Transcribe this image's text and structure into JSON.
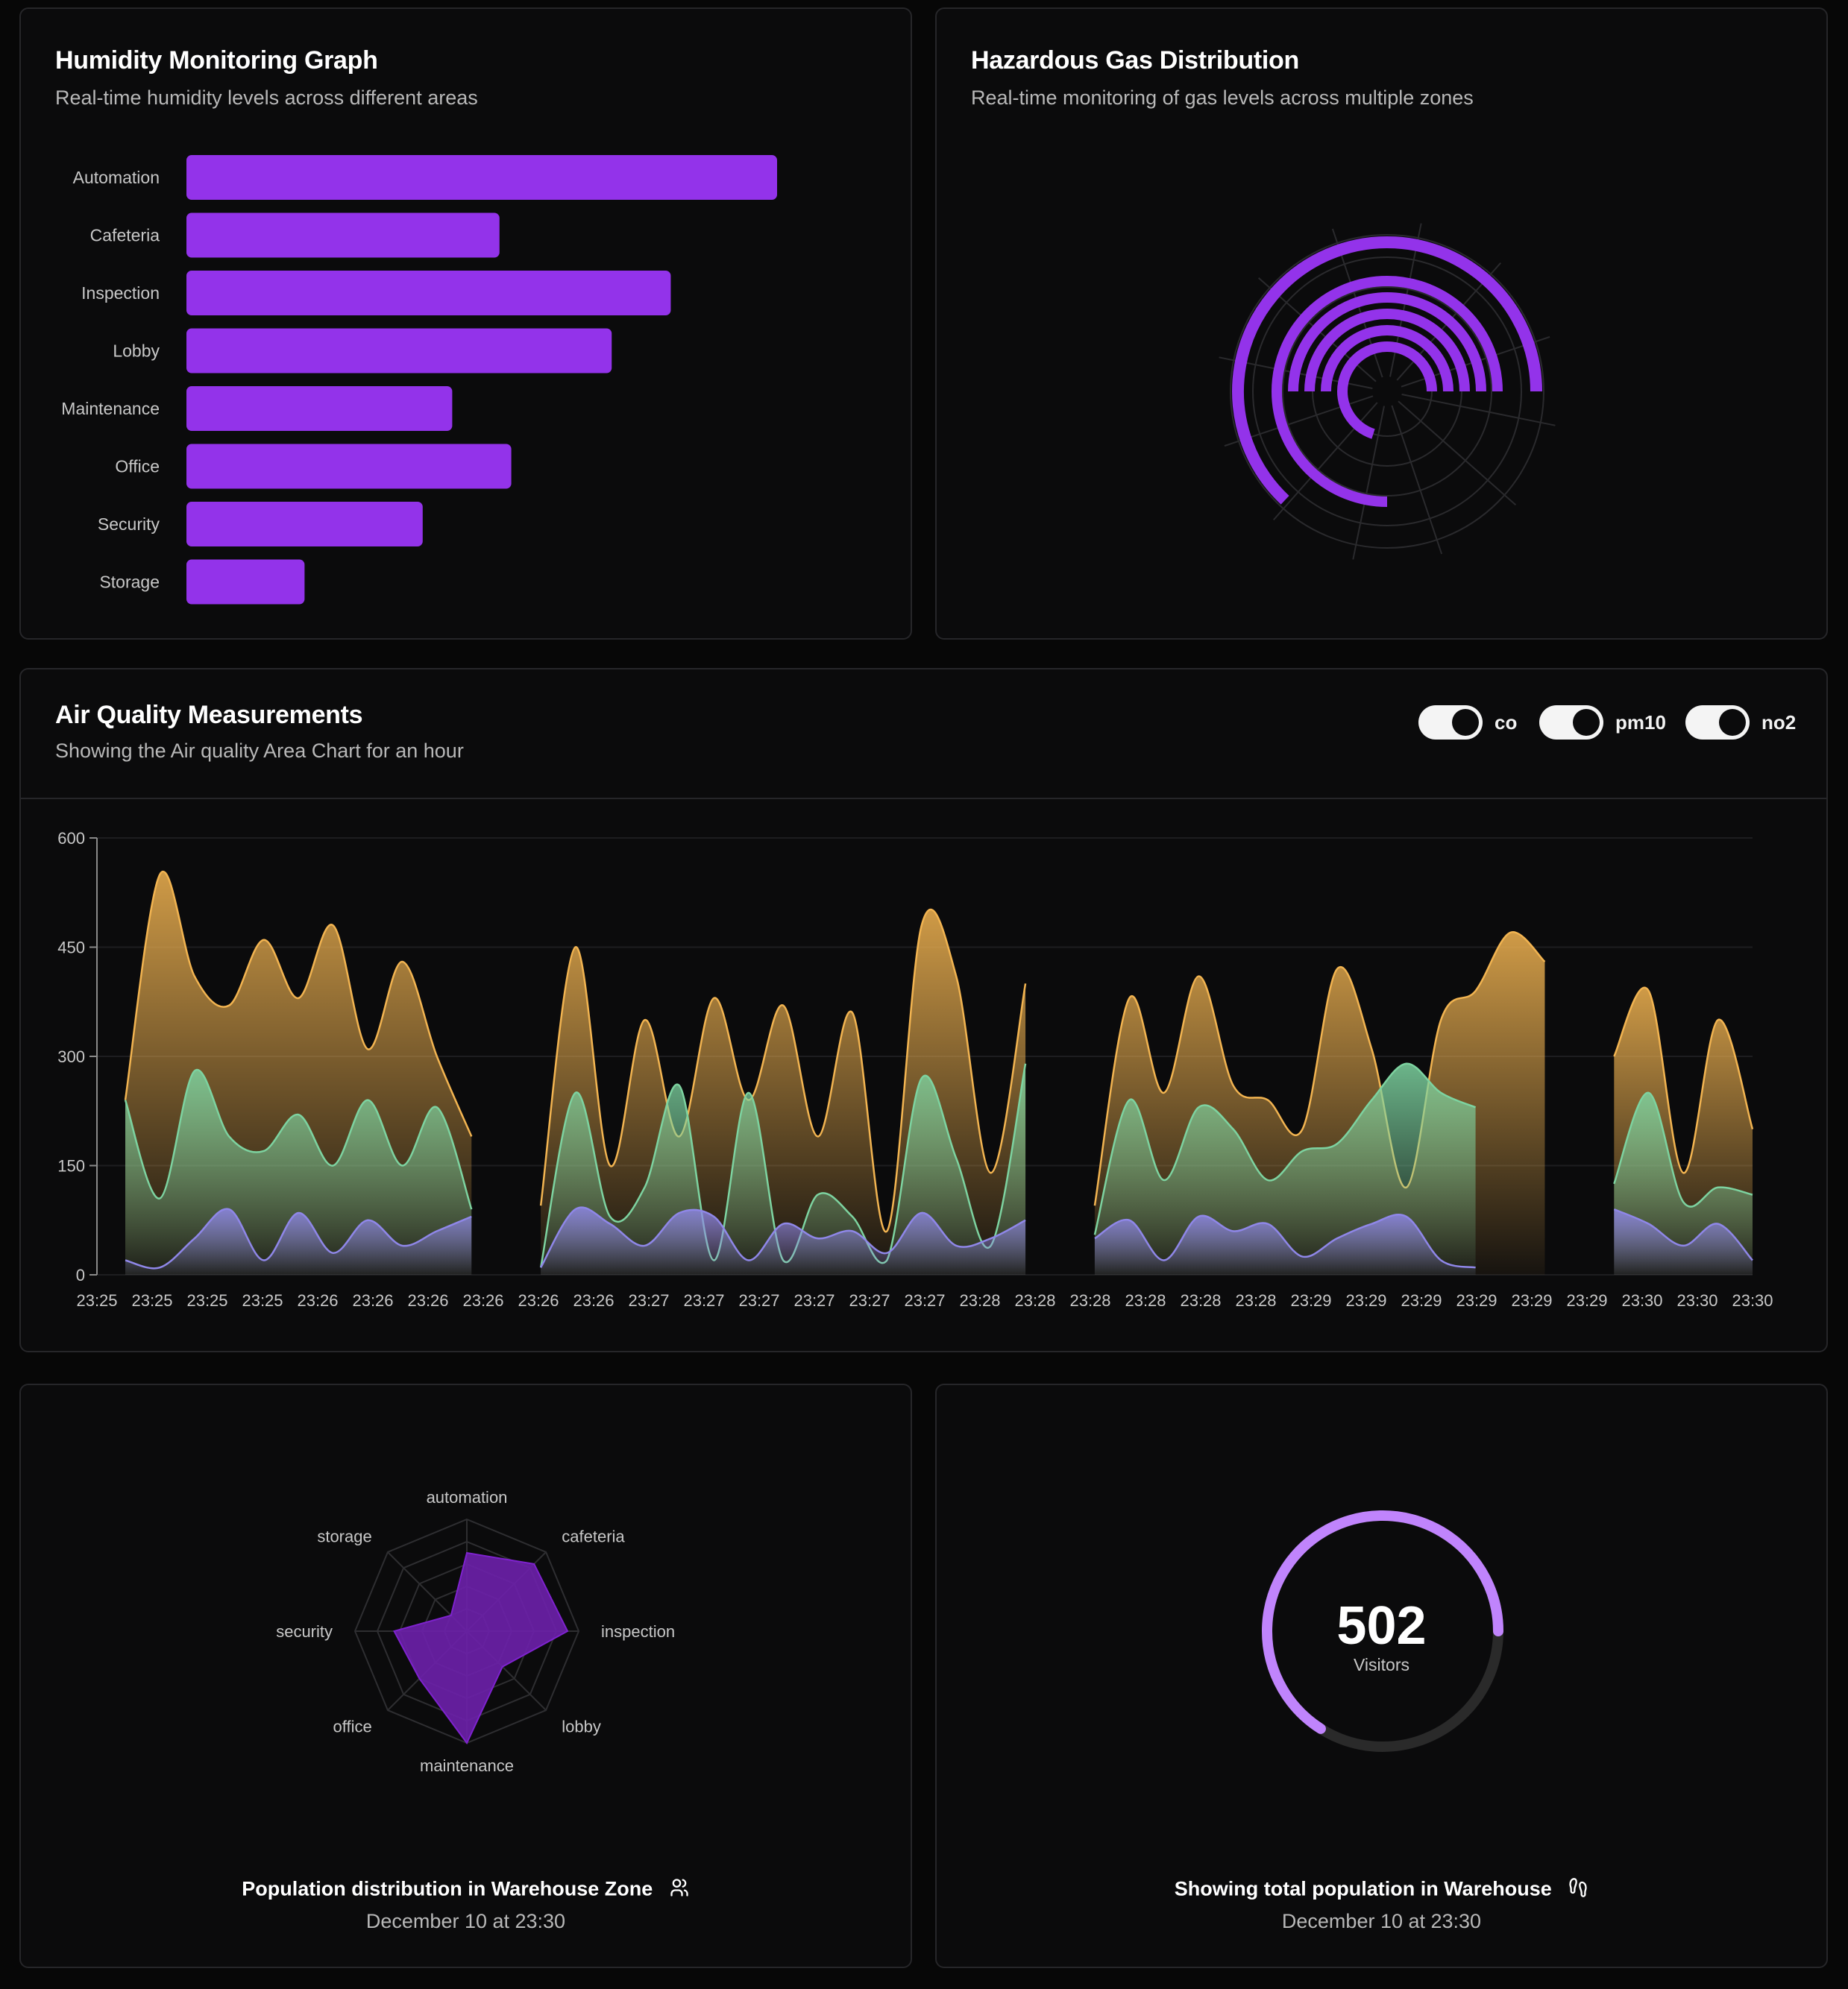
{
  "humidity": {
    "title": "Humidity Monitoring Graph",
    "subtitle": "Real-time humidity levels across different areas",
    "bar_color": "#9333ea",
    "chart_data": {
      "type": "bar",
      "orientation": "horizontal",
      "categories": [
        "Automation",
        "Cafeteria",
        "Inspection",
        "Lobby",
        "Maintenance",
        "Office",
        "Security",
        "Storage"
      ],
      "values": [
        100,
        53,
        82,
        72,
        45,
        55,
        40,
        20
      ],
      "xlim": [
        0,
        100
      ]
    }
  },
  "gas": {
    "title": "Hazardous Gas Distribution",
    "subtitle": "Real-time monitoring of gas levels across multiple zones",
    "ring_color": "#9333ea",
    "chart_data": {
      "type": "radial-bar",
      "values": [
        70,
        50,
        50,
        50,
        75,
        63
      ],
      "max": 100
    }
  },
  "air": {
    "title": "Air Quality Measurements",
    "subtitle": "Showing the Air quality Area Chart for an hour",
    "toggles": [
      {
        "label": "co",
        "on": true
      },
      {
        "label": "pm10",
        "on": true
      },
      {
        "label": "no2",
        "on": true
      }
    ],
    "chart_data": {
      "type": "area",
      "ylim": [
        0,
        600
      ],
      "yticks": [
        0,
        150,
        300,
        450,
        600
      ],
      "xtick_labels": [
        "23:25",
        "23:25",
        "23:25",
        "23:25",
        "23:26",
        "23:26",
        "23:26",
        "23:26",
        "23:26",
        "23:26",
        "23:27",
        "23:27",
        "23:27",
        "23:27",
        "23:27",
        "23:27",
        "23:28",
        "23:28",
        "23:28",
        "23:28",
        "23:28",
        "23:28",
        "23:29",
        "23:29",
        "23:29",
        "23:29",
        "23:29",
        "23:29",
        "23:30",
        "23:30",
        "23:30"
      ],
      "series": [
        {
          "color": "#f2b451",
          "values": [
            240,
            550,
            410,
            370,
            460,
            380,
            480,
            310,
            430,
            300,
            190,
            null,
            95,
            450,
            150,
            350,
            190,
            380,
            240,
            370,
            190,
            360,
            60,
            480,
            410,
            140,
            400,
            null,
            95,
            380,
            250,
            410,
            260,
            240,
            200,
            420,
            310,
            120,
            350,
            390,
            470,
            430,
            null,
            300,
            390,
            140,
            350,
            200
          ]
        },
        {
          "color": "#7dd3a0",
          "values": [
            240,
            105,
            280,
            190,
            170,
            220,
            150,
            240,
            150,
            230,
            90,
            null,
            10,
            250,
            80,
            120,
            260,
            20,
            250,
            20,
            110,
            80,
            20,
            270,
            160,
            40,
            290,
            null,
            55,
            240,
            130,
            230,
            200,
            130,
            170,
            180,
            240,
            290,
            250,
            230,
            null,
            null,
            null,
            125,
            250,
            100,
            120,
            110
          ]
        },
        {
          "color": "#8f87e8",
          "values": [
            20,
            10,
            50,
            90,
            20,
            85,
            30,
            75,
            40,
            60,
            80,
            null,
            10,
            90,
            70,
            40,
            85,
            80,
            20,
            70,
            50,
            60,
            30,
            85,
            40,
            50,
            75,
            null,
            50,
            75,
            20,
            80,
            60,
            70,
            25,
            50,
            70,
            80,
            20,
            10,
            null,
            null,
            null,
            90,
            70,
            40,
            70,
            20
          ]
        }
      ]
    }
  },
  "population": {
    "footer_title": "Population distribution in Warehouse Zone",
    "footer_date": "December 10 at 23:30",
    "chart_data": {
      "type": "radar",
      "categories": [
        "automation",
        "cafeteria",
        "inspection",
        "lobby",
        "maintenance",
        "office",
        "security",
        "storage"
      ],
      "values": [
        70,
        85,
        90,
        45,
        100,
        60,
        65,
        20
      ],
      "max": 100
    }
  },
  "visitors": {
    "value": "502",
    "label": "Visitors",
    "footer_title": "Showing total population in Warehouse",
    "footer_date": "December 10 at 23:30",
    "progress": 0.66,
    "progress_color": "#c084fc",
    "track_color": "#2a2a2a"
  }
}
